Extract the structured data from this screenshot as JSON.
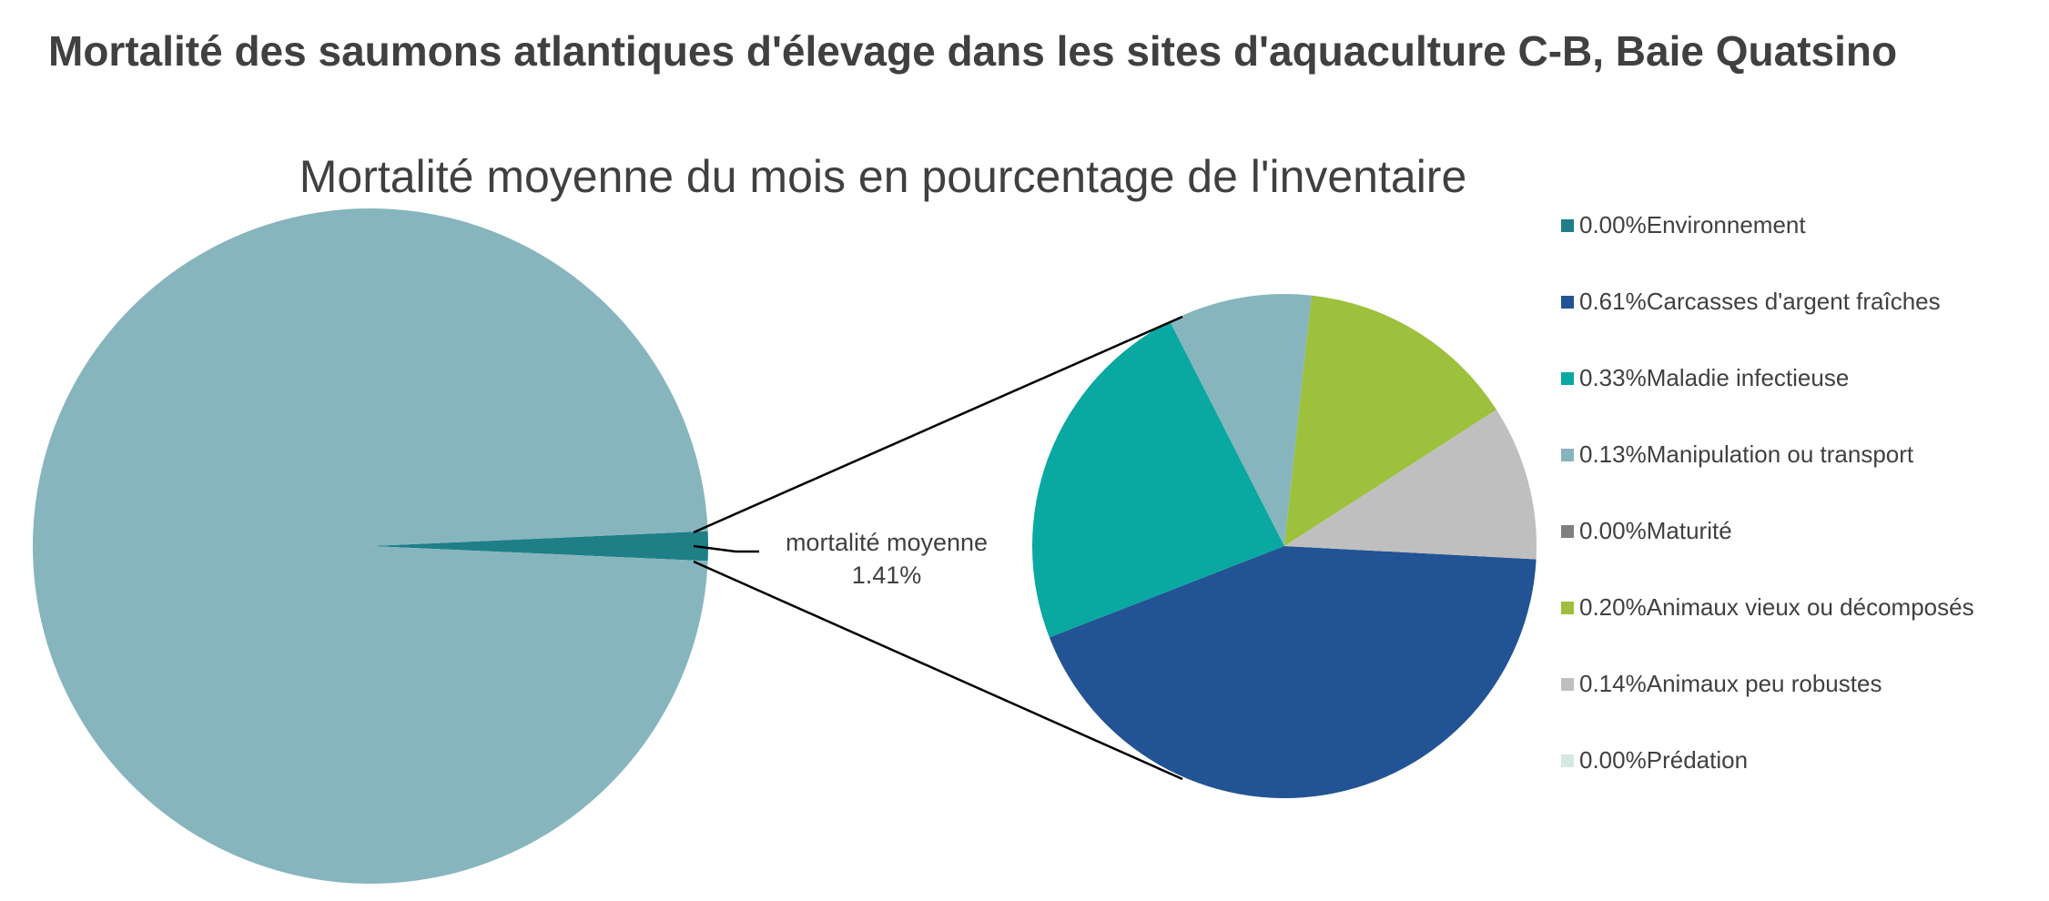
{
  "chart_data": {
    "type": "pie",
    "title": "Mortalité des saumons atlantiques d'élevage dans les sites d'aquaculture C-B, Baie Quatsino",
    "subtitle": "Mortalité moyenne du mois en pourcentage de l'inventaire",
    "main_pie": {
      "slices": [
        {
          "label": "mortalité moyenne",
          "value": 1.41,
          "value_label": "1.41%",
          "color": "#1E7F87"
        },
        {
          "label": "",
          "value": 98.59,
          "color": "#87B5BD"
        }
      ]
    },
    "detail_pie": {
      "slices": [
        {
          "label": "Environnement",
          "value": 0.0,
          "value_label": "0.00%",
          "color": "#1E7F87"
        },
        {
          "label": "Carcasses d'argent fraîches",
          "value": 0.61,
          "value_label": "0.61%",
          "color": "#225394"
        },
        {
          "label": "Maladie infectieuse",
          "value": 0.33,
          "value_label": "0.33%",
          "color": "#09A8A0"
        },
        {
          "label": "Manipulation ou transport",
          "value": 0.13,
          "value_label": "0.13%",
          "color": "#87B5BD"
        },
        {
          "label": "Maturité",
          "value": 0.0,
          "value_label": "0.00%",
          "color": "#808080"
        },
        {
          "label": "Animaux vieux ou décomposés",
          "value": 0.2,
          "value_label": "0.20%",
          "color": "#9DC03D"
        },
        {
          "label": "Animaux peu robustes",
          "value": 0.14,
          "value_label": "0.14%",
          "color": "#BFBFBF"
        },
        {
          "label": "Prédation",
          "value": 0.0,
          "value_label": "0.00%",
          "color": "#D5E8E5"
        }
      ]
    },
    "legend_position": "right"
  }
}
